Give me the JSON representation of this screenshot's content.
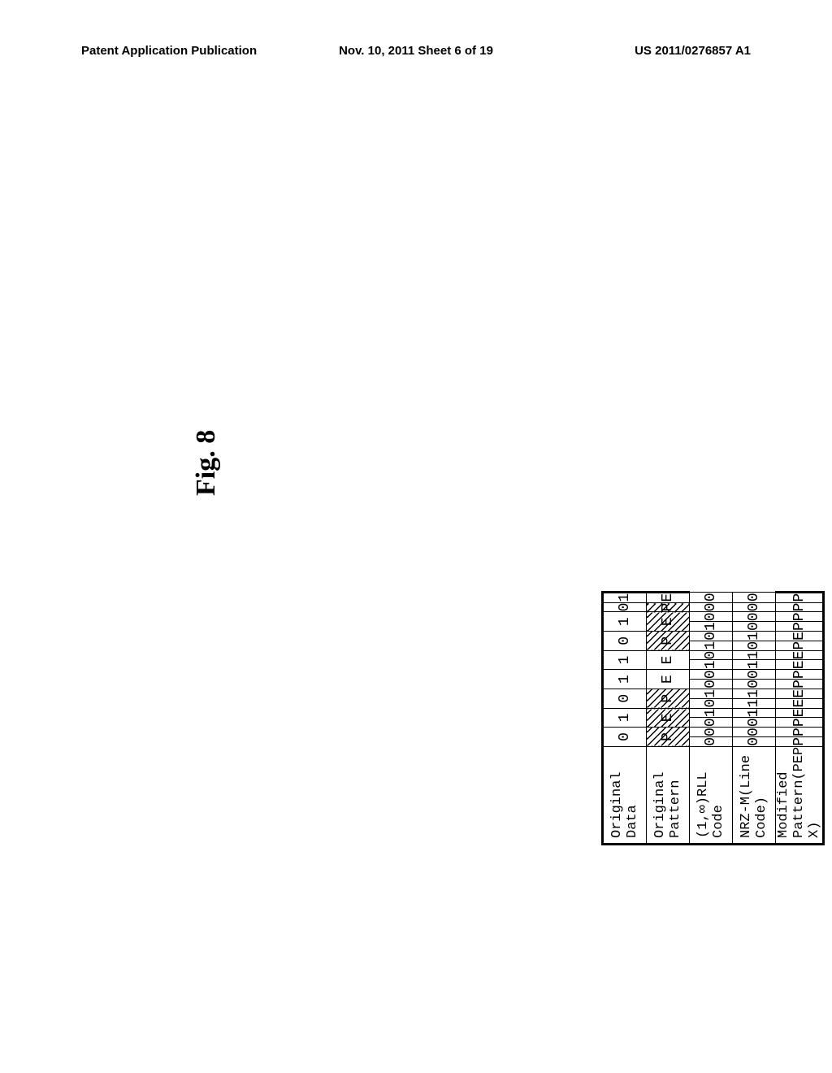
{
  "header": {
    "left": "Patent Application Publication",
    "mid": "Nov. 10, 2011  Sheet 6 of 19",
    "right": "US 2011/0276857 A1"
  },
  "figure_label": "Fig. 8",
  "table": {
    "row_labels": [
      "Original Data",
      "Original Pattern",
      "(1,∞)RLL Code",
      "NRZ-M(Line Code)",
      "Modified Pattern(PEP X)"
    ],
    "original_data": [
      "0",
      "1",
      "0",
      "1",
      "1",
      "0",
      "1",
      "0",
      "1"
    ],
    "original_pattern": [
      "P",
      "E",
      "P",
      "E",
      "E",
      "P",
      "E",
      "P",
      "E"
    ],
    "original_pattern_hatched": [
      true,
      true,
      true,
      false,
      false,
      true,
      true,
      true,
      false
    ],
    "rll_code": [
      "0",
      "0",
      "0",
      "1",
      "0",
      "1",
      "0",
      "0",
      "1",
      "0",
      "1",
      "0",
      "1",
      "0",
      "0",
      "0"
    ],
    "nrz_line": [
      "0",
      "0",
      "0",
      "1",
      "1",
      "1",
      "0",
      "0",
      "1",
      "1",
      "0",
      "1",
      "0",
      "0",
      "0",
      "0"
    ],
    "mod_pattern": [
      "P",
      "P",
      "P",
      "E",
      "E",
      "E",
      "P",
      "P",
      "E",
      "E",
      "P",
      "E",
      "P",
      "P",
      "P",
      "P"
    ]
  },
  "style": {
    "cell_font": "Courier New",
    "cell_fontsize": 18,
    "hatch_angle": 45,
    "border_color": "#000000"
  }
}
